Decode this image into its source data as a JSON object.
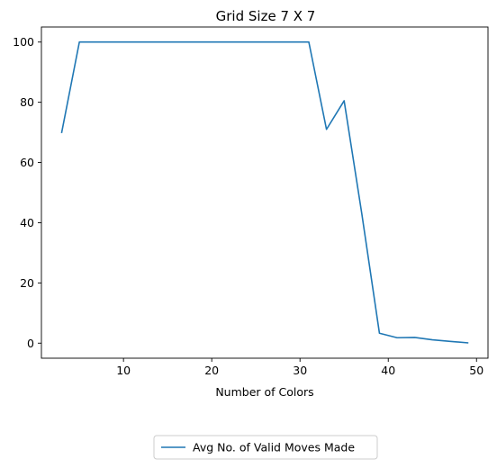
{
  "chart_data": {
    "type": "line",
    "title": "Grid Size 7 X 7",
    "xlabel": "Number of Colors",
    "ylabel": "",
    "xlim": [
      0.7,
      51.3
    ],
    "ylim": [
      -5,
      105
    ],
    "xticks": [
      10,
      20,
      30,
      40,
      50
    ],
    "yticks": [
      0,
      20,
      40,
      60,
      80,
      100
    ],
    "grid": false,
    "legend_position": "bottom-center, below axes",
    "series": [
      {
        "name": "Avg No. of Valid Moves Made",
        "color": "#1f77b4",
        "x": [
          3,
          5,
          7,
          9,
          11,
          13,
          15,
          17,
          19,
          21,
          23,
          25,
          27,
          29,
          31,
          33,
          35,
          37,
          39,
          41,
          43,
          45,
          47,
          49
        ],
        "y": [
          70,
          100,
          100,
          100,
          100,
          100,
          100,
          100,
          100,
          100,
          100,
          100,
          100,
          100,
          100,
          71,
          80.5,
          43,
          3.3,
          1.8,
          1.9,
          1.1,
          0.6,
          0.1
        ]
      }
    ]
  }
}
